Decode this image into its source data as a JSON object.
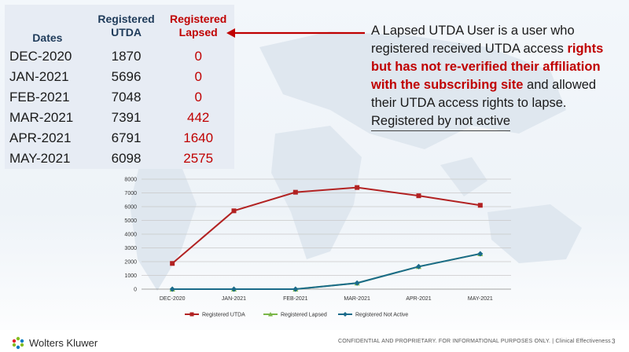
{
  "table": {
    "headers": {
      "dates": "Dates",
      "utda": "Registered\nUTDA",
      "lapsed": "Registered\nLapsed"
    },
    "rows": [
      {
        "date": "DEC-2020",
        "utda": "1870",
        "lapsed": "0"
      },
      {
        "date": "JAN-2021",
        "utda": "5696",
        "lapsed": "0"
      },
      {
        "date": "FEB-2021",
        "utda": "7048",
        "lapsed": "0"
      },
      {
        "date": "MAR-2021",
        "utda": "7391",
        "lapsed": "442"
      },
      {
        "date": "APR-2021",
        "utda": "6791",
        "lapsed": "1640"
      },
      {
        "date": "MAY-2021",
        "utda": "6098",
        "lapsed": "2575"
      }
    ]
  },
  "callout": {
    "part1": "A Lapsed UTDA User is a user who registered received UTDA access ",
    "part2": "rights  but has not re-verified their affiliation with the subscribing site",
    "part3": " and allowed their UTDA access rights to lapse.",
    "part4": "Registered by not active"
  },
  "chart_data": {
    "type": "line",
    "categories": [
      "DEC-2020",
      "JAN-2021",
      "FEB-2021",
      "MAR-2021",
      "APR-2021",
      "MAY-2021"
    ],
    "series": [
      {
        "name": "Registered UTDA",
        "color": "#b22222",
        "marker": "square",
        "values": [
          1870,
          5696,
          7048,
          7391,
          6791,
          6098
        ]
      },
      {
        "name": "Registered Lapsed",
        "color": "#7ab648",
        "marker": "triangle",
        "values": [
          0,
          0,
          0,
          442,
          1640,
          2575
        ]
      },
      {
        "name": "Registered Not Active",
        "color": "#1a6b8a",
        "marker": "diamond",
        "values": [
          0,
          0,
          0,
          442,
          1640,
          2575
        ]
      }
    ],
    "ylim": [
      0,
      8000
    ],
    "yticks": [
      "0",
      "1000",
      "2000",
      "3000",
      "4000",
      "5000",
      "6000",
      "7000",
      "8000"
    ],
    "grid": true,
    "legend_position": "bottom"
  },
  "footer": {
    "brand": "Wolters Kluwer",
    "confidential": "CONFIDENTIAL AND PROPRIETARY. FOR INFORMATIONAL PURPOSES ONLY.  |  Clinical Effectiveness",
    "page": "3"
  },
  "colors": {
    "accent_red": "#c00000",
    "table_bg": "#e7ecf4",
    "header_blue": "#1f3b5a"
  },
  "icons": {
    "arrow": "arrow-left-icon",
    "logo": "wolters-kluwer-logo-icon"
  }
}
